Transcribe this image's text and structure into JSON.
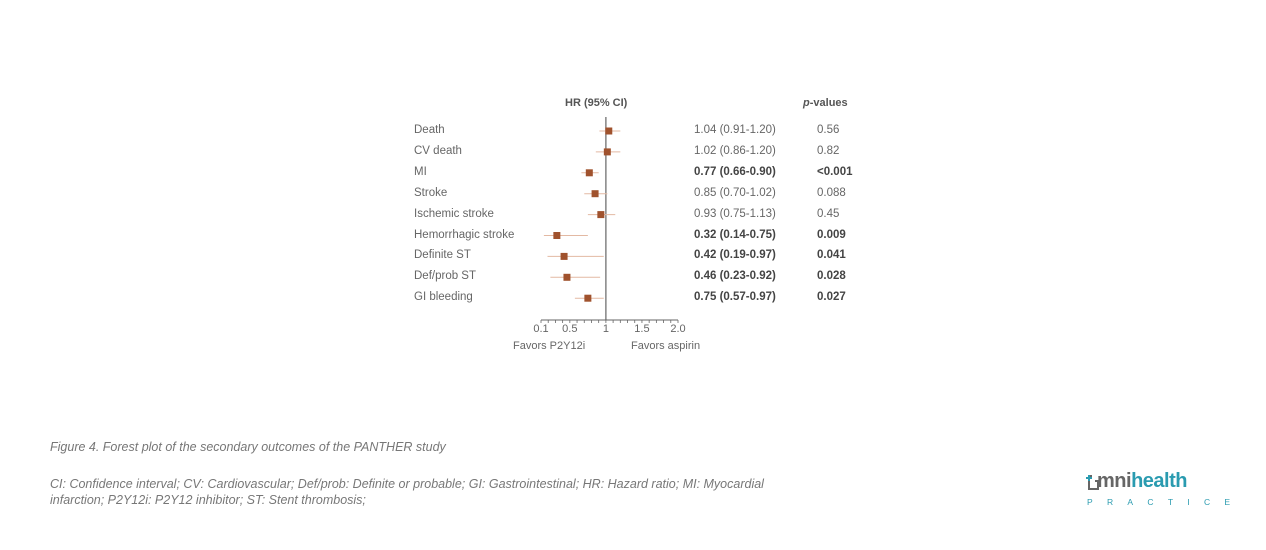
{
  "chart_data": {
    "type": "forest",
    "column_headers": {
      "hr": "HR (95% CI)",
      "p_prefix": "p",
      "p_suffix": "-values"
    },
    "rows": [
      {
        "label": "Death",
        "hr": 1.04,
        "lo": 0.91,
        "hi": 1.2,
        "hr_text": "1.04 (0.91-1.20)",
        "p_text": "0.56",
        "significant": false
      },
      {
        "label": "CV death",
        "hr": 1.02,
        "lo": 0.86,
        "hi": 1.2,
        "hr_text": "1.02 (0.86-1.20)",
        "p_text": "0.82",
        "significant": false
      },
      {
        "label": "MI",
        "hr": 0.77,
        "lo": 0.66,
        "hi": 0.9,
        "hr_text": "0.77 (0.66-0.90)",
        "p_text": "<0.001",
        "significant": true
      },
      {
        "label": "Stroke",
        "hr": 0.85,
        "lo": 0.7,
        "hi": 1.02,
        "hr_text": "0.85 (0.70-1.02)",
        "p_text": "0.088",
        "significant": false
      },
      {
        "label": "Ischemic stroke",
        "hr": 0.93,
        "lo": 0.75,
        "hi": 1.13,
        "hr_text": "0.93 (0.75-1.13)",
        "p_text": "0.45",
        "significant": false
      },
      {
        "label": "Hemorrhagic stroke",
        "hr": 0.32,
        "lo": 0.14,
        "hi": 0.75,
        "hr_text": "0.32 (0.14-0.75)",
        "p_text": "0.009",
        "significant": true
      },
      {
        "label": "Definite ST",
        "hr": 0.42,
        "lo": 0.19,
        "hi": 0.97,
        "hr_text": "0.42 (0.19-0.97)",
        "p_text": "0.041",
        "significant": true
      },
      {
        "label": "Def/prob ST",
        "hr": 0.46,
        "lo": 0.23,
        "hi": 0.92,
        "hr_text": "0.46 (0.23-0.92)",
        "p_text": "0.028",
        "significant": true
      },
      {
        "label": "GI bleeding",
        "hr": 0.75,
        "lo": 0.57,
        "hi": 0.97,
        "hr_text": "0.75 (0.57-0.97)",
        "p_text": "0.027",
        "significant": true
      }
    ],
    "x_ticks": [
      {
        "value": 0.1,
        "label": "0.1"
      },
      {
        "value": 0.5,
        "label": "0.5"
      },
      {
        "value": 1.0,
        "label": "1"
      },
      {
        "value": 1.5,
        "label": "1.5"
      },
      {
        "value": 2.0,
        "label": "2.0"
      }
    ],
    "xlim": [
      0.1,
      2.0
    ],
    "reference_line": 1.0,
    "favors_left": "Favors P2Y12i",
    "favors_right": "Favors aspirin",
    "marker_color": "#a0522d",
    "ci_color": "#e3b9a3",
    "axis_color": "#666666"
  },
  "caption": "Figure 4. Forest plot of the secondary outcomes of the PANTHER study",
  "abbreviations": "CI: Confidence interval; CV: Cardiovascular; Def/prob: Definite or probable; GI: Gastrointestinal; HR: Hazard ratio; MI: Myocardial infarction; P2Y12i: P2Y12 inhibitor; ST: Stent thrombosis;",
  "logo": {
    "part1": "mni",
    "part2": "health",
    "sub": "PRACTICE",
    "brand_color": "#2a9bb0",
    "icon": "omnihealth-logo-icon"
  }
}
